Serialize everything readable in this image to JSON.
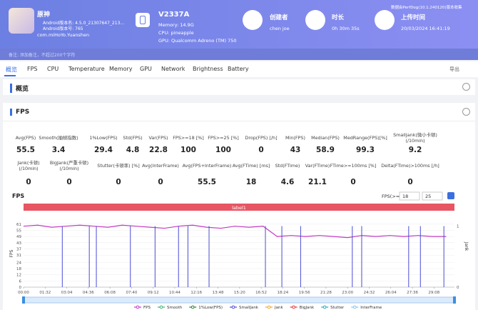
{
  "header": {
    "app_name": "原神",
    "android_version_name": "Android版本名: 4.5.0_21307647_213...",
    "android_version_code": "Android版本号: 765",
    "package": "com.miHoYo.Yuanshen",
    "device": "V2337A",
    "memory": "Memory: 14.9G",
    "cpu": "CPU: pineapple",
    "gpu": "GPU: Qualcomm Adreno (TM) 750",
    "creator_label": "创建者",
    "creator": "chen joe",
    "duration_label": "时长",
    "duration": "0h 30m 35s",
    "upload_label": "上传时间",
    "upload_time": "20/03/2024 16:41:19",
    "collected_by": "数据由PerfDog(10.1.240120)版本收集",
    "note": "备注: 添加备注，不超过200个字符"
  },
  "tabs": [
    "概览",
    "FPS",
    "CPU",
    "Temperature",
    "Memory",
    "GPU",
    "Network",
    "Brightness",
    "Battery"
  ],
  "export": "导出",
  "overview_title": "概览",
  "fps_section": {
    "title": "FPS",
    "metrics_row1": [
      {
        "label": [
          "Avg(FPS)"
        ],
        "value": 55.5
      },
      {
        "label": [
          "Smooth(抽帧指数)"
        ],
        "value": 3.4
      },
      {
        "label": [
          "1%Low(FPS)"
        ],
        "value": 29.4
      },
      {
        "label": [
          "Std(FPS)"
        ],
        "value": 4.8
      },
      {
        "label": [
          "Var(FPS)"
        ],
        "value": 22.8
      },
      {
        "label": [
          "FPS>=18 [%]"
        ],
        "value": 100
      },
      {
        "label": [
          "FPS>=25 [%]"
        ],
        "value": 100
      },
      {
        "label": [
          "Drop(FPS) [/h]"
        ],
        "value": 0
      },
      {
        "label": [
          "Min(FPS)"
        ],
        "value": 43
      },
      {
        "label": [
          "Median(FPS)"
        ],
        "value": 58.9
      },
      {
        "label": [
          "MedRange(FPS)[%]"
        ],
        "value": 99.3
      },
      {
        "label": [
          "SmallJank(微小卡顿)",
          "(/10min)"
        ],
        "value": 9.2
      }
    ],
    "metrics_row2": [
      {
        "label": [
          "Jank(卡顿)",
          "(/10min)"
        ],
        "value": 0
      },
      {
        "label": [
          "BigJank(严重卡顿)",
          "(/10min)"
        ],
        "value": 0
      },
      {
        "label": [
          "Stutter(卡顿率) [%]"
        ],
        "value": 0
      },
      {
        "label": [
          "Avg(InterFrame)"
        ],
        "value": 0
      },
      {
        "label": [
          "Avg(FPS+InterFrame)"
        ],
        "value": 55.5
      },
      {
        "label": [
          "Avg(FTime) [ms]"
        ],
        "value": 18
      },
      {
        "label": [
          "Std(FTime)"
        ],
        "value": 4.6
      },
      {
        "label": [
          "Var(FTime)"
        ],
        "value": 21.1
      },
      {
        "label": [
          "FTime>=100ms [%]"
        ],
        "value": 0
      },
      {
        "label": [
          "Delta(FTime)>100ms [/h]"
        ],
        "value": 0
      }
    ]
  },
  "chart_data": {
    "type": "line",
    "title": "FPS",
    "threshold_label": "FPS(>=)",
    "thresholds": [
      18,
      25
    ],
    "band_label": "label1",
    "ylabel": "FPS",
    "y2label": "Jank",
    "xlim": [
      0,
      1835
    ],
    "ylim": [
      0,
      65
    ],
    "yticks": [
      0,
      6,
      12,
      18,
      24,
      31,
      37,
      43,
      49,
      55,
      61
    ],
    "y2lim": [
      0,
      1.1
    ],
    "y2ticks": [
      0,
      1
    ],
    "xticks": [
      {
        "value": 0,
        "label": "00:00"
      },
      {
        "value": 92,
        "label": "01:32"
      },
      {
        "value": 184,
        "label": "03:04"
      },
      {
        "value": 276,
        "label": "04:36"
      },
      {
        "value": 368,
        "label": "06:08"
      },
      {
        "value": 460,
        "label": "07:40"
      },
      {
        "value": 552,
        "label": "09:12"
      },
      {
        "value": 644,
        "label": "10:44"
      },
      {
        "value": 736,
        "label": "12:16"
      },
      {
        "value": 828,
        "label": "13:48"
      },
      {
        "value": 920,
        "label": "15:20"
      },
      {
        "value": 1012,
        "label": "16:52"
      },
      {
        "value": 1104,
        "label": "18:24"
      },
      {
        "value": 1196,
        "label": "19:56"
      },
      {
        "value": 1288,
        "label": "21:28"
      },
      {
        "value": 1380,
        "label": "23:00"
      },
      {
        "value": 1472,
        "label": "24:32"
      },
      {
        "value": 1564,
        "label": "26:04"
      },
      {
        "value": 1656,
        "label": "27:36"
      },
      {
        "value": 1748,
        "label": "29:08"
      }
    ],
    "series": [
      {
        "name": "FPS",
        "color": "#c23ac2",
        "x": [
          0,
          60,
          120,
          180,
          240,
          300,
          360,
          420,
          480,
          540,
          600,
          660,
          720,
          780,
          840,
          900,
          960,
          1020,
          1080,
          1140,
          1200,
          1260,
          1320,
          1380,
          1440,
          1500,
          1560,
          1620,
          1680,
          1740,
          1800
        ],
        "values": [
          59,
          60,
          58,
          59,
          60,
          59,
          58,
          60,
          59,
          58,
          57,
          59,
          60,
          58,
          57,
          59,
          58,
          59,
          49,
          50,
          49,
          50,
          49,
          48,
          50,
          49,
          50,
          49,
          50,
          49,
          49
        ]
      },
      {
        "name": "Smooth",
        "color": "#3cb371"
      },
      {
        "name": "1%Low(FPS)",
        "color": "#2e7d32"
      },
      {
        "name": "SmallJank",
        "color": "#4b4bd8",
        "axis": "y2",
        "x": [
          165,
          280,
          310,
          455,
          560,
          660,
          700,
          790,
          1030,
          1100,
          1180,
          1400,
          1440,
          1640,
          1690,
          1790
        ],
        "values": [
          1,
          1,
          1,
          1,
          1,
          1,
          1,
          1,
          1,
          1,
          1,
          1,
          1,
          1,
          1,
          1
        ]
      },
      {
        "name": "Jank",
        "color": "#f5a623"
      },
      {
        "name": "BigJank",
        "color": "#e53935"
      },
      {
        "name": "Stutter",
        "color": "#26a9c7"
      },
      {
        "name": "InterFrame",
        "color": "#7ec8f0"
      }
    ]
  }
}
